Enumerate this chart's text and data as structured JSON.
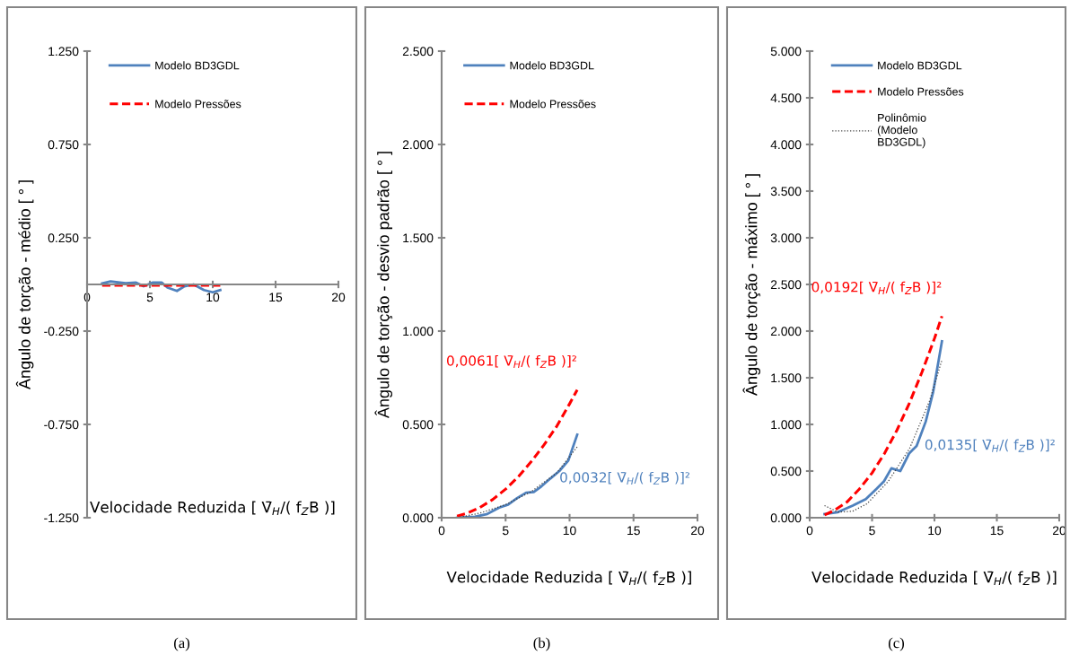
{
  "chart_data": [
    {
      "type": "line",
      "ylabel": "Ângulo de torção - médio [ ° ]",
      "xlabel": "Velocidade Reduzida [ V̄$_{H}$/( f$_{Z}$B )]",
      "xlim": [
        0,
        20
      ],
      "xticks": [
        0,
        5,
        10,
        15,
        20
      ],
      "ylim": [
        -1.25,
        1.25
      ],
      "yticks": [
        {
          "value": -1.25,
          "label": "-1.250"
        },
        {
          "value": -0.75,
          "label": "-0.750"
        },
        {
          "value": -0.25,
          "label": "-0.250"
        },
        {
          "value": 0.25,
          "label": "0.250"
        },
        {
          "value": 0.75,
          "label": "0.750"
        },
        {
          "value": 1.25,
          "label": "1.250"
        }
      ],
      "grid": false,
      "legend": "top",
      "marker": "none",
      "series": [
        {
          "name": "Modelo BD3GDL",
          "color": "#4f81bd",
          "line_style": "solid",
          "x": [
            1.2,
            1.87,
            3.07,
            3.9,
            4.5,
            5.2,
            5.95,
            6.4,
            7.15,
            7.75,
            8.47,
            9.3,
            10.0,
            10.6
          ],
          "values": [
            0.006,
            0.016,
            0.006,
            0.01,
            -0.01,
            0.01,
            0.01,
            -0.017,
            -0.035,
            -0.01,
            0.0,
            -0.03,
            -0.042,
            -0.03
          ]
        },
        {
          "name": "Modelo Pressões",
          "color": "#ff0000",
          "line_style": "dashed",
          "x": [
            1.2,
            10.6
          ],
          "values": [
            -0.005,
            -0.005
          ]
        }
      ],
      "annotations": [
        "(a)"
      ]
    },
    {
      "type": "line",
      "ylabel": "Ângulo de torção - desvio padrão [ ° ]",
      "xlabel": "Velocidade Reduzida [ V̄$_{H}$/( f$_{Z}$B )]",
      "xlim": [
        0,
        20
      ],
      "xticks": [
        0,
        5,
        10,
        15,
        20
      ],
      "ylim": [
        0,
        2.5
      ],
      "yticks": [
        {
          "value": 0,
          "label": "0.000"
        },
        {
          "value": 0.5,
          "label": "0.500"
        },
        {
          "value": 1.0,
          "label": "1.000"
        },
        {
          "value": 1.5,
          "label": "1.500"
        },
        {
          "value": 2.0,
          "label": "2.000"
        },
        {
          "value": 2.5,
          "label": "2.500"
        }
      ],
      "grid": false,
      "legend": "top",
      "marker": "none",
      "series": [
        {
          "name": "Modelo BD3GDL",
          "color": "#4f81bd",
          "line_style": "solid",
          "x": [
            1.2,
            2.6,
            3.57,
            4.5,
            5.2,
            5.9,
            6.6,
            7.2,
            7.8,
            8.5,
            9.2,
            9.9,
            10.6
          ],
          "values": [
            0.0,
            0.005,
            0.02,
            0.054,
            0.07,
            0.105,
            0.134,
            0.138,
            0.168,
            0.21,
            0.25,
            0.306,
            0.445
          ]
        },
        {
          "name": "Modelo Pressões",
          "color": "#ff0000",
          "line_style": "dashed",
          "x": [
            1.2,
            2,
            3,
            4,
            5,
            6,
            7,
            8,
            9,
            10,
            10.6
          ],
          "values": [
            0.009,
            0.024,
            0.055,
            0.098,
            0.153,
            0.22,
            0.3,
            0.39,
            0.49,
            0.61,
            0.685
          ]
        },
        {
          "color": "#404040",
          "line_style": "dotted",
          "x": [
            1.2,
            3,
            5,
            7,
            9,
            10.6
          ],
          "values": [
            0.0,
            0.025,
            0.07,
            0.14,
            0.24,
            0.38
          ]
        }
      ],
      "annotations": [
        "0,0032[ V̄$_{H}$/( f$_{Z}$B )]²",
        "0,0061[ V̄$_{H}$/( f$_{Z}$B )]²",
        "(b)"
      ]
    },
    {
      "type": "line",
      "ylabel": "Ângulo de torção - máximo [ ° ]",
      "xlabel": "Velocidade Reduzida [ V̄$_{H}$/( f$_{Z}$B )]",
      "xlim": [
        0,
        20
      ],
      "xticks": [
        0,
        5,
        10,
        15,
        20
      ],
      "ylim": [
        0,
        5
      ],
      "yticks": [
        {
          "value": 0,
          "label": "0.000"
        },
        {
          "value": 0.5,
          "label": "0.500"
        },
        {
          "value": 1.0,
          "label": "1.000"
        },
        {
          "value": 1.5,
          "label": "1.500"
        },
        {
          "value": 2.0,
          "label": "2.000"
        },
        {
          "value": 2.5,
          "label": "2.500"
        },
        {
          "value": 3.0,
          "label": "3.000"
        },
        {
          "value": 3.5,
          "label": "3.500"
        },
        {
          "value": 4.0,
          "label": "4.000"
        },
        {
          "value": 4.5,
          "label": "4.500"
        },
        {
          "value": 5.0,
          "label": "5.000"
        }
      ],
      "grid": false,
      "legend": "top",
      "marker": "none",
      "series": [
        {
          "name": "Modelo BD3GDL",
          "color": "#4f81bd",
          "line_style": "solid",
          "x": [
            1.19,
            2.26,
            3.45,
            4.5,
            5.36,
            5.95,
            6.55,
            7.26,
            7.98,
            8.57,
            9.3,
            9.9,
            10.6
          ],
          "values": [
            0.04,
            0.06,
            0.13,
            0.2,
            0.31,
            0.39,
            0.53,
            0.5,
            0.69,
            0.77,
            1.03,
            1.35,
            1.89
          ]
        },
        {
          "name": "Modelo Pressões",
          "color": "#ff0000",
          "line_style": "dashed",
          "x": [
            1.2,
            2,
            3,
            4,
            5,
            6,
            7,
            8,
            9,
            10,
            10.6
          ],
          "values": [
            0.03,
            0.08,
            0.17,
            0.31,
            0.48,
            0.69,
            0.94,
            1.23,
            1.56,
            1.92,
            2.16
          ]
        },
        {
          "name": "Polinômio (Modelo BD3GDL)",
          "color": "#404040",
          "line_style": "dotted",
          "x": [
            1.19,
            2.26,
            3.45,
            4.6,
            6.3,
            8.0,
            9.6,
            10.6
          ],
          "values": [
            0.13,
            0.06,
            0.07,
            0.15,
            0.39,
            0.74,
            1.25,
            1.69
          ]
        }
      ],
      "annotations": [
        "0,0135[ V̄$_{H}$/( f$_{Z}$B )]²",
        "0,0192[ V̄$_{H}$/( f$_{Z}$B )]²",
        "(c)"
      ]
    }
  ]
}
